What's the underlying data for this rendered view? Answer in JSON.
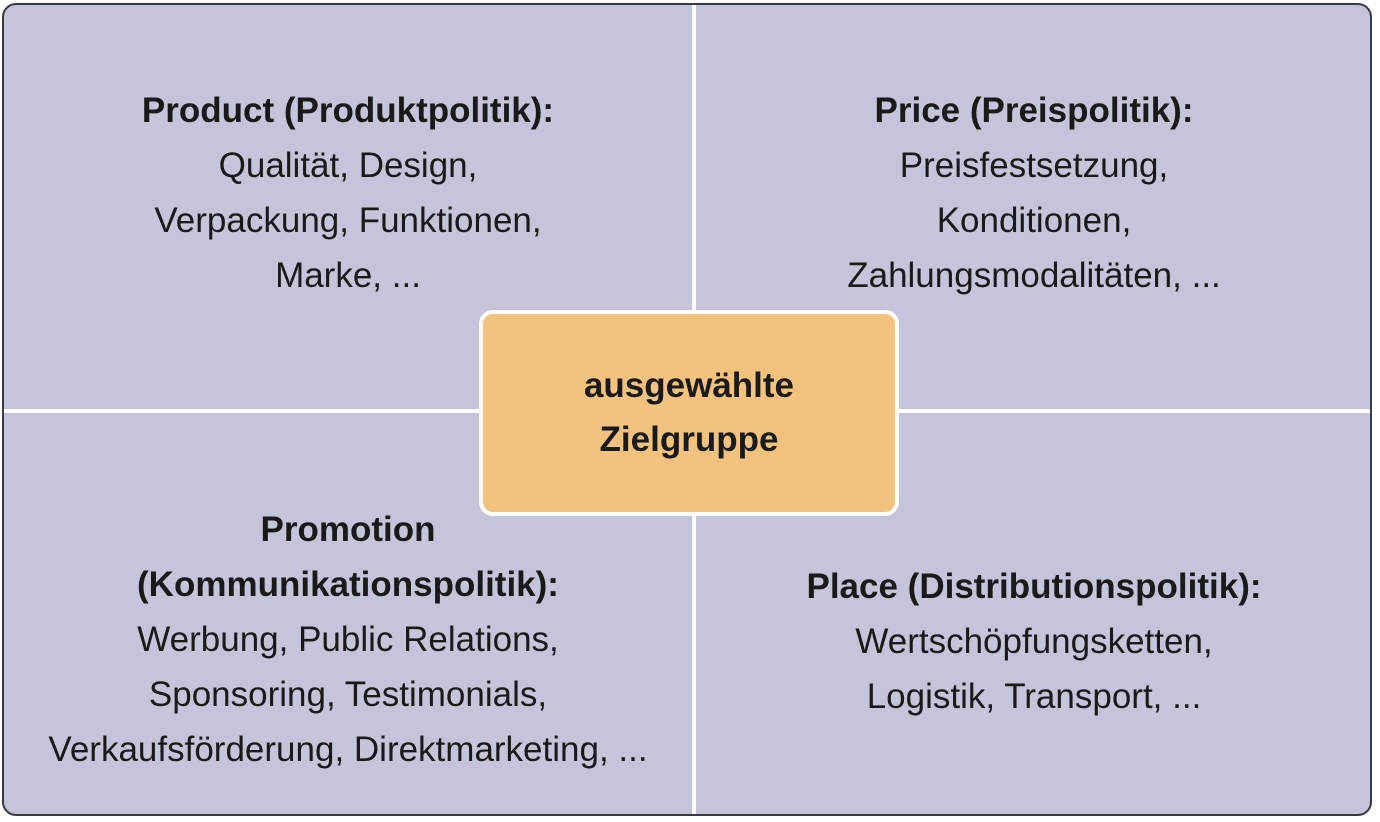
{
  "quadrants": {
    "product": {
      "heading": "Product (Produktpolitik):",
      "lines": [
        "Qualität, Design,",
        "Verpackung, Funktionen,",
        "Marke, ..."
      ]
    },
    "price": {
      "heading": "Price (Preispolitik):",
      "lines": [
        "Preisfestsetzung,",
        "Konditionen,",
        "Zahlungsmodalitäten, ..."
      ]
    },
    "promotion": {
      "heading_lines": [
        "Promotion",
        "(Kommunikationspolitik):"
      ],
      "lines": [
        "Werbung, Public Relations,",
        "Sponsoring, Testimonials,",
        "Verkaufsförderung, Direktmarketing, ..."
      ]
    },
    "place": {
      "heading": "Place (Distributionspolitik):",
      "lines": [
        "Wertschöpfungsketten,",
        "Logistik, Transport, ..."
      ]
    }
  },
  "center": {
    "lines": [
      "ausgewählte",
      "Zielgruppe"
    ]
  },
  "colors": {
    "quadrant_background": "#c4c4da",
    "center_background": "#f3c27e",
    "divider": "#ffffff",
    "border": "#3a3a44"
  }
}
